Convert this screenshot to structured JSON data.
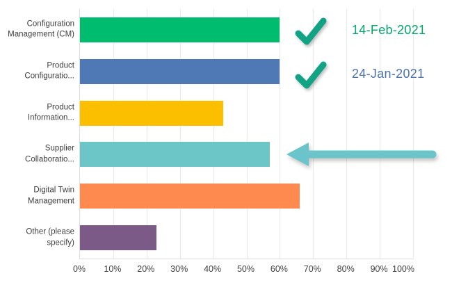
{
  "chart_data": {
    "type": "bar",
    "orientation": "horizontal",
    "title": "",
    "categories": [
      "Configuration Management (CM)",
      "Product Configuratio...",
      "Product Information...",
      "Supplier Collaboratio...",
      "Digital Twin Management",
      "Other (please specify)"
    ],
    "values": [
      60,
      60,
      43,
      57,
      66,
      23
    ],
    "unit": "%",
    "bar_colors": [
      "#00bc6e",
      "#4e79b4",
      "#fbbf00",
      "#6cc5c6",
      "#fe8a50",
      "#7c5a88"
    ],
    "x_ticks": [
      "0%",
      "10%",
      "20%",
      "30%",
      "40%",
      "50%",
      "60%",
      "70%",
      "80%",
      "90%",
      "100%"
    ],
    "xlim": [
      0,
      100
    ],
    "grid": "vertical",
    "legend": "none",
    "annotations": {
      "checkmarks": [
        {
          "icon": "checkmark-icon",
          "target_row": 1,
          "color": "#12a384"
        },
        {
          "icon": "checkmark-icon",
          "target_row": 2,
          "color": "#12a384"
        }
      ],
      "dates": [
        {
          "text": "14-Feb-2021",
          "color": "#00a86b"
        },
        {
          "text": "24-Jan-2021",
          "color": "#4d74af"
        }
      ],
      "arrow": {
        "icon": "arrow-left-icon",
        "target_row": 4,
        "color": "#6bc4c9"
      }
    },
    "colors": {
      "background": "#ffffff",
      "gridline": "#e9e9e9",
      "axis_line": "#d9d9d9",
      "tick_text": "#404040",
      "category_text": "#3d3d3d"
    }
  }
}
